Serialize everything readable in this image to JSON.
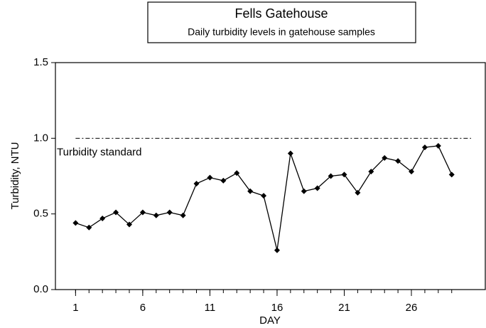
{
  "chart_data": {
    "type": "line",
    "title": "Fells Gatehouse",
    "subtitle": "Daily turbidity levels in gatehouse samples",
    "xlabel": "DAY",
    "ylabel": "Turbidity, NTU",
    "x": [
      1,
      2,
      3,
      4,
      5,
      6,
      7,
      8,
      9,
      10,
      11,
      12,
      13,
      14,
      15,
      16,
      17,
      18,
      19,
      20,
      21,
      22,
      23,
      24,
      25,
      26,
      27,
      28,
      29
    ],
    "series": [
      {
        "name": "Turbidity",
        "color": "#000000",
        "values": [
          0.44,
          0.41,
          0.47,
          0.51,
          0.43,
          0.51,
          0.49,
          0.51,
          0.49,
          0.7,
          0.74,
          0.72,
          0.77,
          0.65,
          0.62,
          0.26,
          0.9,
          0.65,
          0.67,
          0.75,
          0.76,
          0.64,
          0.78,
          0.87,
          0.85,
          0.78,
          0.94,
          0.95,
          0.76
        ]
      }
    ],
    "xlim": [
      -0.5,
      31.5
    ],
    "xticks": [
      1,
      6,
      11,
      16,
      21,
      26
    ],
    "ylim": [
      0,
      1.5
    ],
    "yticks": [
      {
        "value": 0,
        "label": "0.0"
      },
      {
        "value": 0.5,
        "label": "0.5"
      },
      {
        "value": 1,
        "label": "1.0"
      },
      {
        "value": 1.5,
        "label": "1.5"
      }
    ],
    "reference_line": {
      "value": 1,
      "label": "Turbidity standard"
    }
  }
}
